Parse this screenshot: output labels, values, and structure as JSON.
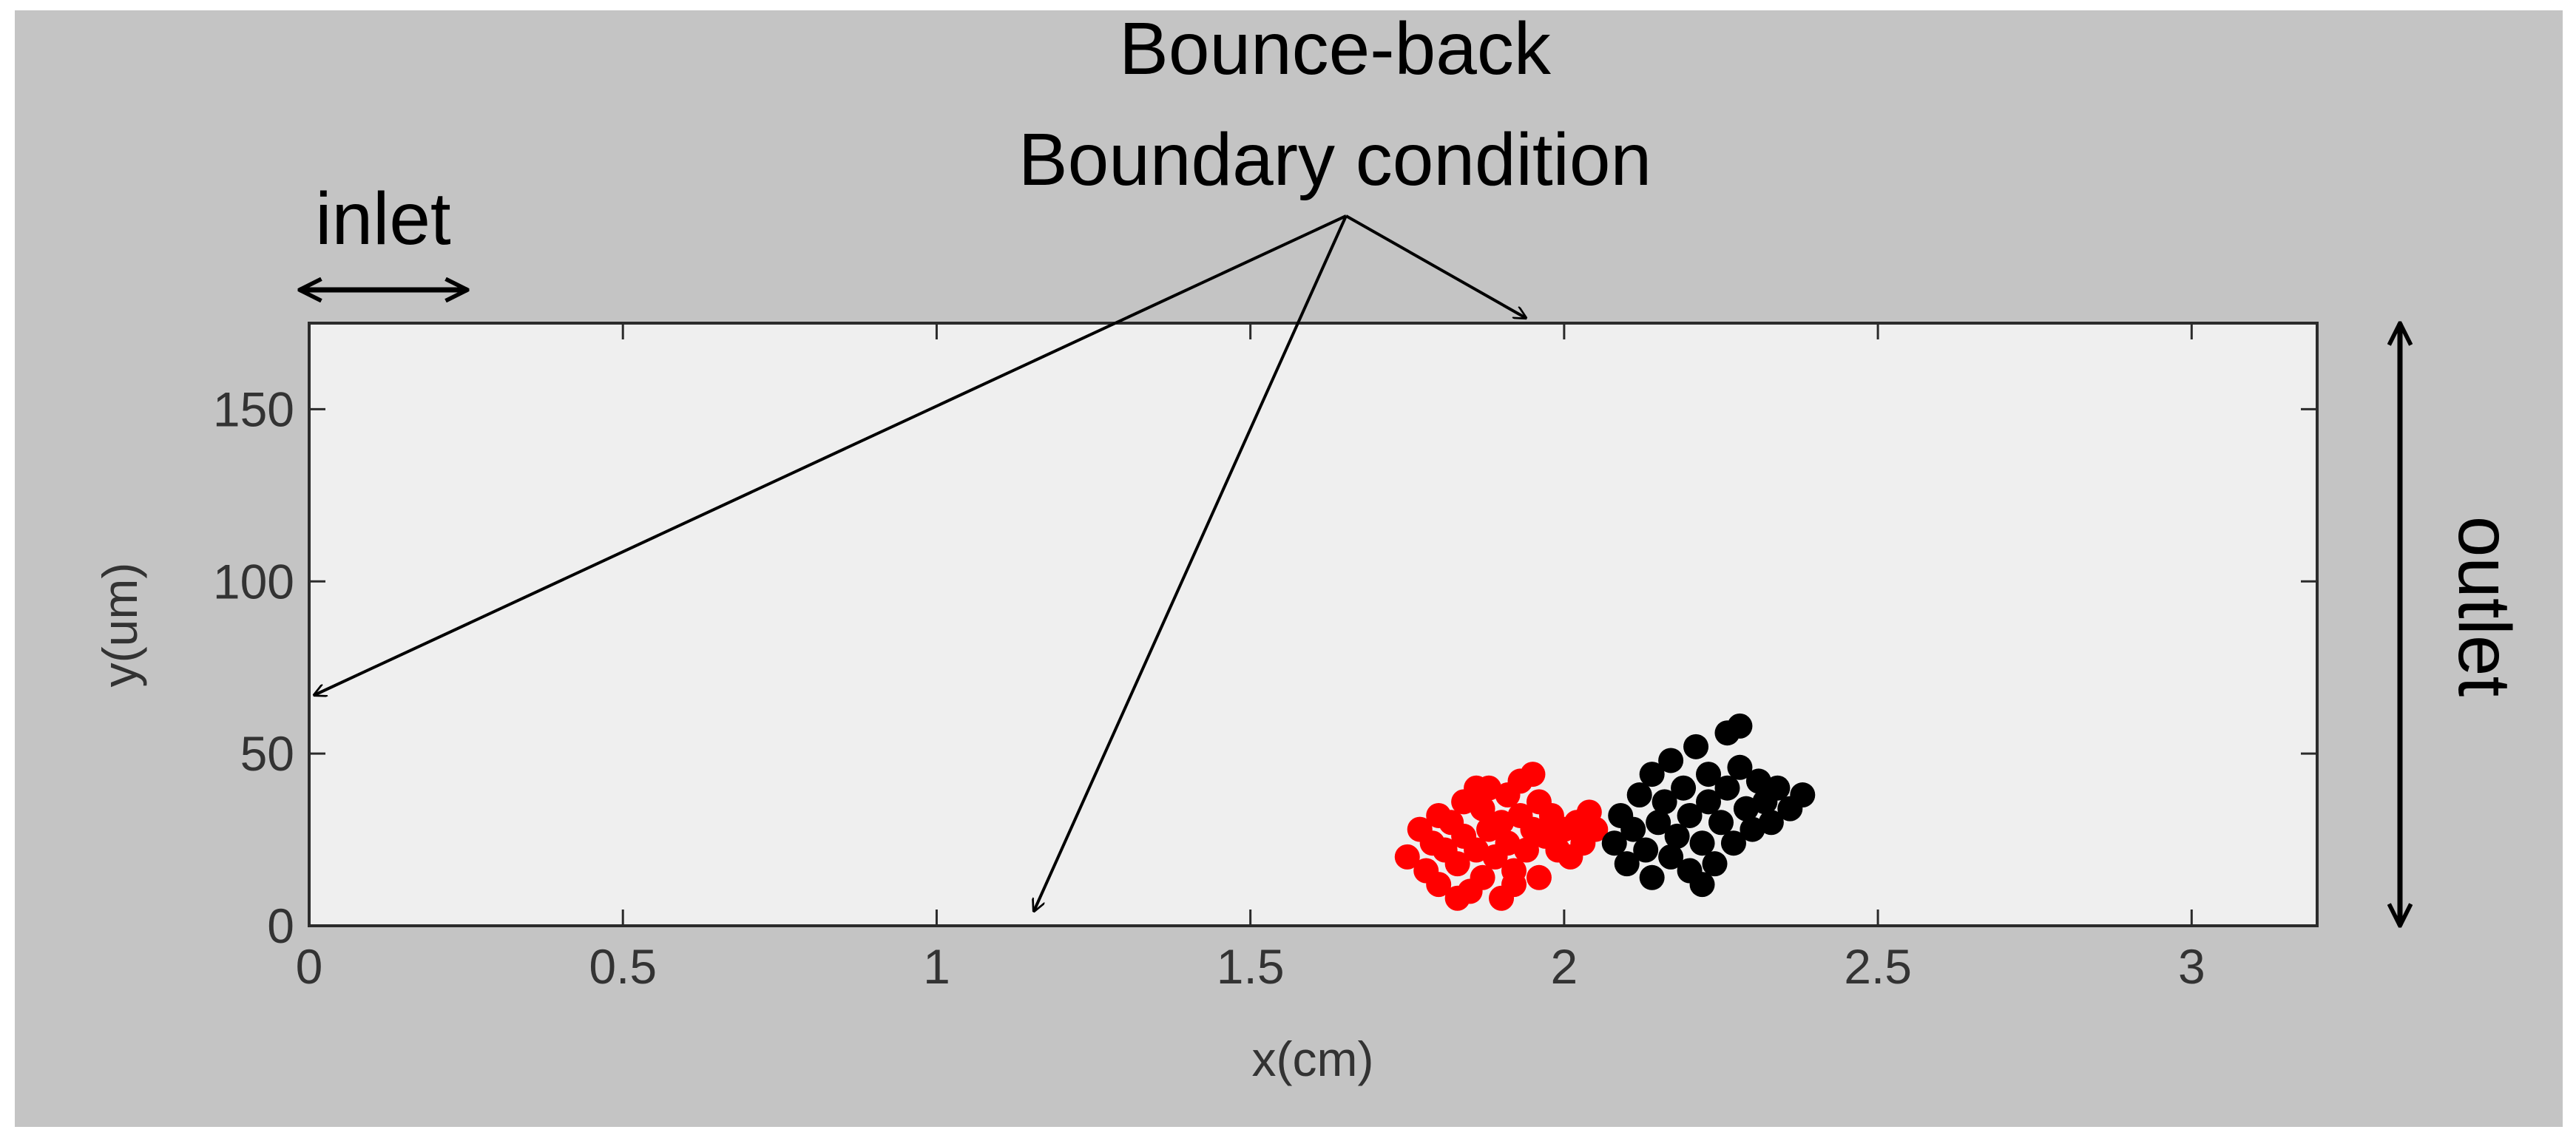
{
  "annotations": {
    "boundary_line1": "Bounce-back",
    "boundary_line2": "Boundary condition",
    "inlet": "inlet",
    "outlet": "outlet"
  },
  "chart_data": {
    "type": "scatter",
    "xlabel": "x(cm)",
    "ylabel": "y(um)",
    "xlim": [
      0,
      3.2
    ],
    "ylim": [
      0,
      175
    ],
    "xticks": [
      0,
      0.5,
      1,
      1.5,
      2,
      2.5,
      3
    ],
    "xtick_labels": [
      "0",
      "0.5",
      "1",
      "1.5",
      "2",
      "2.5",
      "3"
    ],
    "yticks": [
      0,
      50,
      100,
      150
    ],
    "ytick_labels": [
      "0",
      "50",
      "100",
      "150"
    ],
    "grid": false,
    "legend": "none",
    "series": [
      {
        "color": "#ff0000",
        "points": [
          [
            1.75,
            20
          ],
          [
            1.77,
            28
          ],
          [
            1.78,
            16
          ],
          [
            1.79,
            24
          ],
          [
            1.8,
            32
          ],
          [
            1.8,
            12
          ],
          [
            1.81,
            22
          ],
          [
            1.82,
            30
          ],
          [
            1.83,
            18
          ],
          [
            1.84,
            26
          ],
          [
            1.84,
            36
          ],
          [
            1.85,
            10
          ],
          [
            1.86,
            22
          ],
          [
            1.87,
            34
          ],
          [
            1.87,
            14
          ],
          [
            1.88,
            28
          ],
          [
            1.88,
            40
          ],
          [
            1.89,
            20
          ],
          [
            1.9,
            8
          ],
          [
            1.9,
            30
          ],
          [
            1.91,
            24
          ],
          [
            1.91,
            38
          ],
          [
            1.92,
            16
          ],
          [
            1.93,
            32
          ],
          [
            1.93,
            42
          ],
          [
            1.94,
            22
          ],
          [
            1.95,
            28
          ],
          [
            1.96,
            36
          ],
          [
            1.96,
            14
          ],
          [
            1.97,
            26
          ],
          [
            1.98,
            32
          ],
          [
            1.99,
            22
          ],
          [
            2.0,
            28
          ],
          [
            2.01,
            20
          ],
          [
            2.02,
            30
          ],
          [
            2.03,
            24
          ],
          [
            2.04,
            33
          ],
          [
            2.05,
            28
          ],
          [
            1.92,
            12
          ],
          [
            1.86,
            40
          ],
          [
            1.83,
            8
          ],
          [
            1.95,
            44
          ]
        ]
      },
      {
        "color": "#000000",
        "points": [
          [
            2.08,
            24
          ],
          [
            2.09,
            32
          ],
          [
            2.1,
            18
          ],
          [
            2.11,
            28
          ],
          [
            2.12,
            38
          ],
          [
            2.13,
            22
          ],
          [
            2.14,
            14
          ],
          [
            2.14,
            44
          ],
          [
            2.15,
            30
          ],
          [
            2.16,
            36
          ],
          [
            2.17,
            20
          ],
          [
            2.17,
            48
          ],
          [
            2.18,
            26
          ],
          [
            2.19,
            40
          ],
          [
            2.2,
            16
          ],
          [
            2.2,
            32
          ],
          [
            2.21,
            52
          ],
          [
            2.22,
            24
          ],
          [
            2.23,
            44
          ],
          [
            2.23,
            36
          ],
          [
            2.24,
            18
          ],
          [
            2.25,
            30
          ],
          [
            2.26,
            56
          ],
          [
            2.26,
            40
          ],
          [
            2.27,
            24
          ],
          [
            2.28,
            46
          ],
          [
            2.29,
            34
          ],
          [
            2.3,
            28
          ],
          [
            2.31,
            42
          ],
          [
            2.32,
            36
          ],
          [
            2.33,
            30
          ],
          [
            2.34,
            40
          ],
          [
            2.36,
            34
          ],
          [
            2.38,
            38
          ],
          [
            2.28,
            58
          ],
          [
            2.22,
            12
          ]
        ]
      }
    ]
  }
}
